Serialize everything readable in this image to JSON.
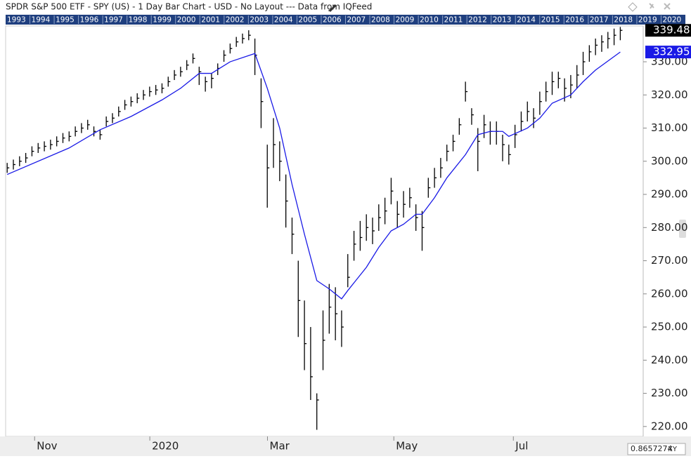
{
  "chart_data": {
    "type": "ohlc",
    "title": "SPDR S&P 500 ETF - SPY (US) - 1 Day Bar Chart - USD - No Layout --- Data from IQFeed",
    "years": [
      "1993",
      "1994",
      "1995",
      "1996",
      "1997",
      "1998",
      "1999",
      "2000",
      "2001",
      "2002",
      "2003",
      "2004",
      "2005",
      "2006",
      "2007",
      "2008",
      "2009",
      "2010",
      "2011",
      "2012",
      "2013",
      "2014",
      "2015",
      "2016",
      "2017",
      "2018",
      "2019",
      "2020"
    ],
    "categories": [
      null,
      null,
      null,
      null,
      null,
      null,
      null,
      null,
      null,
      null,
      null,
      null,
      null,
      null,
      null,
      null,
      null,
      null,
      null,
      null,
      null,
      null,
      null,
      null,
      null,
      null,
      null,
      null,
      null,
      null,
      null,
      null,
      null,
      null,
      null,
      null,
      null,
      null,
      null,
      null,
      null,
      null,
      null,
      null,
      null,
      null,
      null,
      null,
      null,
      null,
      null,
      null,
      null,
      null,
      null,
      null,
      null,
      null,
      null,
      null,
      null,
      null,
      null,
      null,
      null,
      null,
      null,
      null,
      null,
      null,
      null,
      null,
      null,
      null,
      null,
      null,
      null,
      null,
      null,
      null,
      null,
      null,
      null,
      null,
      null,
      null,
      null,
      null,
      null,
      null,
      null,
      null,
      null,
      null,
      null,
      null,
      null,
      null,
      null,
      null
    ],
    "xlim": [
      -0.25,
      102.7
    ],
    "xticks": [
      {
        "value": 5,
        "label": "Nov"
      },
      {
        "value": 23.6,
        "label": "2020"
      },
      {
        "value": 42.6,
        "label": "Mar"
      },
      {
        "value": 63,
        "label": "May"
      },
      {
        "value": 82.3,
        "label": "Jul"
      }
    ],
    "ylim": [
      217,
      340.8
    ],
    "yticks": [
      {
        "value": 220,
        "label": "220.00"
      },
      {
        "value": 230,
        "label": "230.00"
      },
      {
        "value": 240,
        "label": "240.00"
      },
      {
        "value": 250,
        "label": "250.00"
      },
      {
        "value": 260,
        "label": "260.00"
      },
      {
        "value": 270,
        "label": "270.00"
      },
      {
        "value": 280,
        "label": "280.00"
      },
      {
        "value": 290,
        "label": "290.00"
      },
      {
        "value": 300,
        "label": "300.00"
      },
      {
        "value": 310,
        "label": "310.00"
      },
      {
        "value": 320,
        "label": "320.00"
      },
      {
        "value": 330,
        "label": "330.00"
      }
    ],
    "series": [
      {
        "type": "ohlc",
        "color": "#000000",
        "high": [
          299.5,
          300.5,
          301.5,
          302.5,
          304.5,
          305.5,
          306,
          306.5,
          307.5,
          308.5,
          309,
          310.5,
          311.5,
          312.5,
          310.5,
          309.5,
          313.5,
          314.5,
          316.5,
          318.5,
          319.5,
          320.5,
          321.5,
          322.5,
          323,
          323.5,
          325.5,
          327.5,
          328.5,
          330.5,
          332.5,
          328.5,
          325.5,
          326.5,
          329.5,
          333.5,
          335.5,
          337.5,
          338.5,
          339.5,
          337,
          325,
          305,
          313,
          306,
          296,
          283,
          270,
          258,
          250,
          230,
          255,
          263,
          262,
          255,
          272,
          279,
          282,
          284,
          283,
          287,
          289,
          295,
          288,
          291,
          292,
          287,
          285,
          295,
          298,
          301,
          305,
          308,
          313,
          324,
          316,
          310,
          314,
          312,
          312,
          308,
          305,
          311,
          315,
          318,
          316,
          321,
          324,
          327,
          327,
          325,
          326,
          329,
          333,
          335,
          337,
          338,
          339,
          340,
          340.5
        ],
        "low": [
          296.5,
          297.5,
          298.5,
          299.5,
          301.5,
          302.5,
          303,
          303.5,
          304.5,
          305.5,
          306,
          307.5,
          308.5,
          309.5,
          307.5,
          306.5,
          310.5,
          311.5,
          313.5,
          315.5,
          316.5,
          317.5,
          318.5,
          319.5,
          320,
          320.5,
          322.5,
          324.5,
          325.5,
          327.5,
          329.5,
          323,
          321,
          322,
          326,
          330,
          332.5,
          334.5,
          335.5,
          336.5,
          326,
          310,
          286,
          298,
          294,
          280,
          272,
          247,
          237,
          228,
          219,
          237,
          248,
          246,
          244,
          262,
          270,
          273,
          276,
          275,
          279,
          281,
          287,
          280,
          283,
          286,
          279,
          273,
          289,
          292,
          295,
          300,
          303,
          308,
          318,
          311,
          297,
          307,
          305,
          305,
          300,
          299,
          304,
          309,
          312,
          310,
          314,
          318,
          320,
          322,
          318,
          319,
          322,
          326,
          330,
          332,
          333,
          334,
          335,
          336.5
        ],
        "close": [
          298,
          299,
          300,
          301,
          303,
          304,
          304.5,
          305,
          306,
          307,
          307.5,
          309,
          310,
          311,
          309,
          308,
          312,
          313,
          315,
          317,
          318,
          319,
          320,
          321,
          321.5,
          322,
          324,
          326,
          327,
          329,
          331,
          327,
          324,
          325,
          328,
          332,
          334,
          336,
          337,
          338,
          332,
          318,
          298,
          305,
          300,
          288,
          278,
          258,
          245,
          235,
          228,
          246,
          256,
          254,
          250,
          265,
          275,
          277,
          280,
          279,
          283,
          285,
          291,
          284,
          287,
          289,
          283,
          280,
          292,
          295,
          298,
          303,
          306,
          311,
          321,
          314,
          306,
          311,
          309,
          309,
          305,
          302,
          308,
          312,
          315,
          313,
          318,
          321,
          324,
          325,
          322,
          323,
          326,
          330,
          333,
          335,
          336,
          337,
          338,
          339.48
        ],
        "last_label": "339.48"
      },
      {
        "type": "line",
        "color": "#1a1ae6",
        "x": [
          0,
          10,
          15,
          20,
          25,
          28,
          31,
          33,
          36,
          40,
          42,
          44,
          46,
          48,
          50,
          52,
          54,
          55,
          58,
          60,
          62,
          64,
          66,
          67,
          69,
          71,
          74,
          76,
          78,
          80,
          81,
          84,
          86,
          88,
          91,
          93,
          95,
          99
        ],
        "values": [
          296,
          304,
          309.5,
          313.5,
          318.5,
          322,
          326.5,
          326.5,
          330,
          332.5,
          322,
          310,
          293,
          278,
          264,
          261.5,
          258.5,
          261,
          268,
          274,
          279,
          281,
          284,
          284,
          289,
          295,
          302,
          308,
          309,
          309,
          307.5,
          310,
          313,
          317.5,
          320,
          324,
          327.5,
          332.95
        ],
        "last_label": "332.95"
      }
    ],
    "scale_text": "0.8657274",
    "scale_mode": "XY"
  }
}
